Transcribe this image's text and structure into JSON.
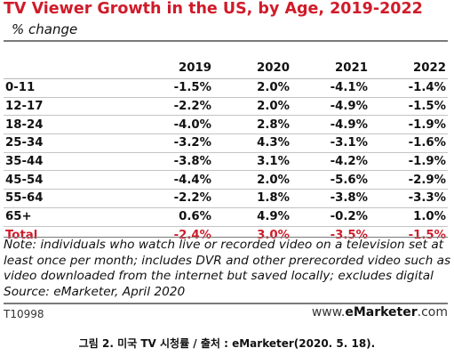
{
  "header": {
    "title": "TV Viewer Growth in the US, by Age, 2019-2022",
    "subtitle": "% change"
  },
  "chart_data": {
    "type": "table",
    "title": "TV Viewer Growth in the US, by Age, 2019-2022",
    "subtitle": "% change",
    "columns": [
      "",
      "2019",
      "2020",
      "2021",
      "2022"
    ],
    "rows": [
      {
        "label": "0-11",
        "values": [
          "-1.5%",
          "2.0%",
          "-4.1%",
          "-1.4%"
        ]
      },
      {
        "label": "12-17",
        "values": [
          "-2.2%",
          "2.0%",
          "-4.9%",
          "-1.5%"
        ]
      },
      {
        "label": "18-24",
        "values": [
          "-4.0%",
          "2.8%",
          "-4.9%",
          "-1.9%"
        ]
      },
      {
        "label": "25-34",
        "values": [
          "-3.2%",
          "4.3%",
          "-3.1%",
          "-1.6%"
        ]
      },
      {
        "label": "35-44",
        "values": [
          "-3.8%",
          "3.1%",
          "-4.2%",
          "-1.9%"
        ]
      },
      {
        "label": "45-54",
        "values": [
          "-4.4%",
          "2.0%",
          "-5.6%",
          "-2.9%"
        ]
      },
      {
        "label": "55-64",
        "values": [
          "-2.2%",
          "1.8%",
          "-3.8%",
          "-3.3%"
        ]
      },
      {
        "label": "65+",
        "values": [
          "0.6%",
          "4.9%",
          "-0.2%",
          "1.0%"
        ]
      }
    ],
    "total": {
      "label": "Total",
      "values": [
        "-2.4%",
        "3.0%",
        "-3.5%",
        "-1.5%"
      ]
    }
  },
  "footer": {
    "note": "Note: individuals who watch live or recorded video on a television set at least once per month; includes DVR and other prerecorded video such as video downloaded from the internet but saved locally; excludes digital",
    "source": "Source: eMarketer, April 2020",
    "code": "T10998",
    "brand_prefix": "www.",
    "brand_name": "eMarketer",
    "brand_suffix": ".com"
  },
  "caption": "그림 2. 미국 TV 시청률 / 출처 : eMarketer(2020. 5. 18).",
  "colors": {
    "title": "#d01b2a",
    "total": "#d01b2a",
    "rule": "#7a7a7a"
  }
}
